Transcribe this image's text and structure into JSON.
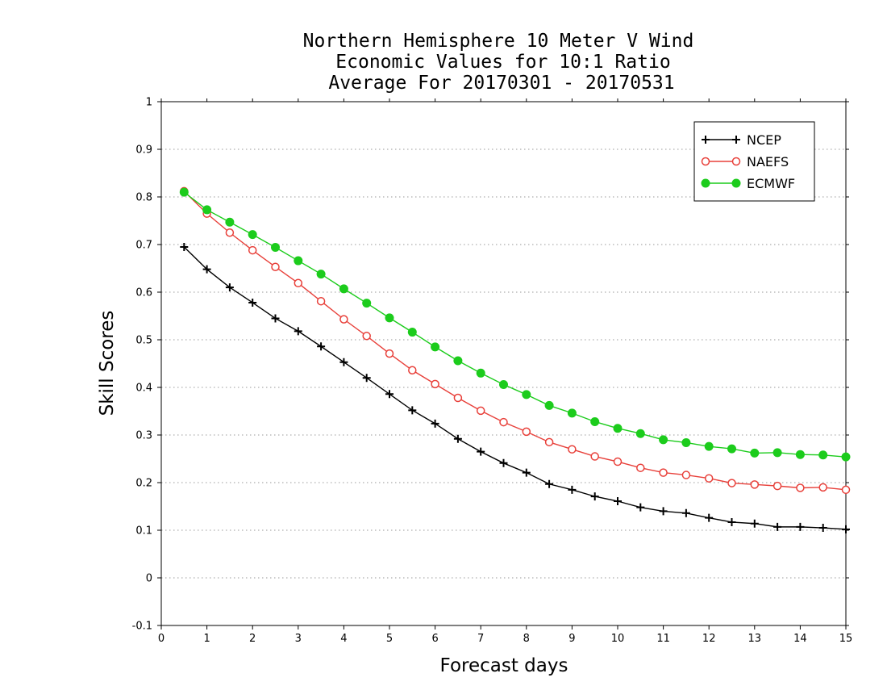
{
  "chart_data": {
    "type": "line",
    "title_lines": [
      "Northern Hemisphere 10 Meter V Wind",
      "Economic Values for 10:1 Ratio",
      "Average For 20170301 - 20170531"
    ],
    "xlabel": "Forecast days",
    "ylabel": "Skill Scores",
    "xlim": [
      0,
      15
    ],
    "ylim": [
      -0.1,
      1
    ],
    "x_ticks": [
      0,
      1,
      2,
      3,
      4,
      5,
      6,
      7,
      8,
      9,
      10,
      11,
      12,
      13,
      14,
      15
    ],
    "x_tick_labels": [
      "0",
      "1",
      "2",
      "3",
      "4",
      "5",
      "6",
      "7",
      "8",
      "9",
      "10",
      "11",
      "12",
      "13",
      "14",
      "15"
    ],
    "y_ticks": [
      -0.1,
      0,
      0.1,
      0.2,
      0.3,
      0.4,
      0.5,
      0.6,
      0.7,
      0.8,
      0.9,
      1
    ],
    "y_tick_labels": [
      "-0.1",
      "0",
      "0.1",
      "0.2",
      "0.3",
      "0.4",
      "0.5",
      "0.6",
      "0.7",
      "0.8",
      "0.9",
      "1"
    ],
    "grid": "horizontal dotted",
    "legend_position": "top-right",
    "x": [
      0.5,
      1,
      1.5,
      2,
      2.5,
      3,
      3.5,
      4,
      4.5,
      5,
      5.5,
      6,
      6.5,
      7,
      7.5,
      8,
      8.5,
      9,
      9.5,
      10,
      10.5,
      11,
      11.5,
      12,
      12.5,
      13,
      13.5,
      14,
      14.5,
      15
    ],
    "series": [
      {
        "name": "NCEP",
        "color": "#000000",
        "marker": "plus",
        "values": [
          0.695,
          0.648,
          0.61,
          0.578,
          0.545,
          0.518,
          0.486,
          0.453,
          0.42,
          0.386,
          0.352,
          0.324,
          0.292,
          0.265,
          0.241,
          0.221,
          0.197,
          0.185,
          0.171,
          0.161,
          0.148,
          0.14,
          0.136,
          0.126,
          0.117,
          0.114,
          0.107,
          0.107,
          0.105,
          0.102
        ]
      },
      {
        "name": "NAEFS",
        "color": "#e8403a",
        "marker": "open-circle",
        "values": [
          0.812,
          0.765,
          0.725,
          0.688,
          0.653,
          0.619,
          0.581,
          0.543,
          0.508,
          0.471,
          0.436,
          0.407,
          0.378,
          0.351,
          0.327,
          0.307,
          0.285,
          0.27,
          0.255,
          0.244,
          0.231,
          0.221,
          0.216,
          0.209,
          0.199,
          0.196,
          0.193,
          0.189,
          0.19,
          0.185
        ]
      },
      {
        "name": "ECMWF",
        "color": "#1ccc1c",
        "marker": "filled-circle",
        "values": [
          0.81,
          0.773,
          0.747,
          0.721,
          0.694,
          0.666,
          0.638,
          0.607,
          0.577,
          0.546,
          0.516,
          0.485,
          0.456,
          0.43,
          0.406,
          0.385,
          0.362,
          0.346,
          0.328,
          0.314,
          0.303,
          0.29,
          0.284,
          0.276,
          0.271,
          0.262,
          0.263,
          0.259,
          0.258,
          0.254
        ]
      }
    ]
  }
}
